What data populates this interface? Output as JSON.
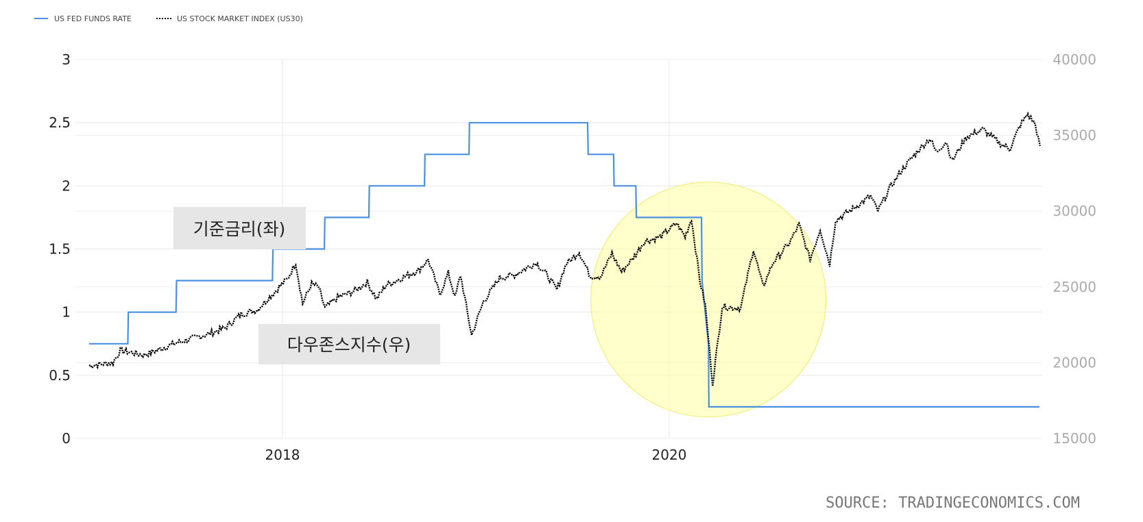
{
  "chart_data": {
    "type": "line",
    "legend": {
      "position": "top-left",
      "items": [
        {
          "label": "US FED FUNDS RATE",
          "style": "solid",
          "color": "#4a90e2"
        },
        {
          "label": "US STOCK MARKET INDEX (US30)",
          "style": "dotted",
          "color": "#000000"
        }
      ]
    },
    "x_axis": {
      "ticks": [
        "2018",
        "2020"
      ],
      "range": [
        "2017-01",
        "2021-12"
      ]
    },
    "y_left": {
      "min": 0,
      "max": 3,
      "ticks": [
        "0",
        "0.5",
        "1",
        "1.5",
        "2",
        "2.5",
        "3"
      ]
    },
    "y_right": {
      "min": 15000,
      "max": 40000,
      "ticks": [
        "15000",
        "20000",
        "25000",
        "30000",
        "35000",
        "40000"
      ]
    },
    "grid": true,
    "series": [
      {
        "name": "US FED FUNDS RATE",
        "axis": "left",
        "color": "#4a90e2",
        "points": [
          [
            "2017-01-01",
            0.75
          ],
          [
            "2017-03-15",
            0.75
          ],
          [
            "2017-03-16",
            1.0
          ],
          [
            "2017-06-14",
            1.0
          ],
          [
            "2017-06-15",
            1.25
          ],
          [
            "2017-12-13",
            1.25
          ],
          [
            "2017-12-14",
            1.5
          ],
          [
            "2018-03-21",
            1.5
          ],
          [
            "2018-03-22",
            1.75
          ],
          [
            "2018-06-13",
            1.75
          ],
          [
            "2018-06-14",
            2.0
          ],
          [
            "2018-09-26",
            2.0
          ],
          [
            "2018-09-27",
            2.25
          ],
          [
            "2018-12-19",
            2.25
          ],
          [
            "2018-12-20",
            2.5
          ],
          [
            "2019-07-31",
            2.5
          ],
          [
            "2019-08-01",
            2.25
          ],
          [
            "2019-09-18",
            2.25
          ],
          [
            "2019-09-19",
            2.0
          ],
          [
            "2019-10-30",
            2.0
          ],
          [
            "2019-10-31",
            1.75
          ],
          [
            "2020-03-02",
            1.75
          ],
          [
            "2020-03-03",
            1.25
          ],
          [
            "2020-03-15",
            0.75
          ],
          [
            "2020-03-16",
            0.25
          ],
          [
            "2021-11-30",
            0.25
          ]
        ]
      },
      {
        "name": "US STOCK MARKET INDEX (US30)",
        "axis": "right",
        "color": "#000000",
        "points": [
          [
            "2017-01-01",
            19800
          ],
          [
            "2017-02-15",
            20000
          ],
          [
            "2017-03-01",
            20800
          ],
          [
            "2017-04-15",
            20500
          ],
          [
            "2017-05-15",
            20900
          ],
          [
            "2017-06-15",
            21300
          ],
          [
            "2017-07-15",
            21600
          ],
          [
            "2017-08-15",
            21900
          ],
          [
            "2017-09-15",
            22300
          ],
          [
            "2017-10-15",
            23200
          ],
          [
            "2017-11-15",
            23500
          ],
          [
            "2017-12-15",
            24600
          ],
          [
            "2018-01-10",
            25500
          ],
          [
            "2018-01-26",
            26600
          ],
          [
            "2018-02-08",
            23900
          ],
          [
            "2018-02-25",
            25200
          ],
          [
            "2018-03-10",
            25000
          ],
          [
            "2018-03-22",
            23600
          ],
          [
            "2018-04-15",
            24300
          ],
          [
            "2018-05-15",
            24700
          ],
          [
            "2018-06-10",
            25300
          ],
          [
            "2018-06-28",
            24200
          ],
          [
            "2018-07-15",
            25100
          ],
          [
            "2018-08-15",
            25600
          ],
          [
            "2018-09-15",
            26100
          ],
          [
            "2018-10-03",
            26800
          ],
          [
            "2018-10-25",
            24500
          ],
          [
            "2018-11-10",
            25900
          ],
          [
            "2018-11-23",
            24300
          ],
          [
            "2018-12-03",
            25800
          ],
          [
            "2018-12-24",
            21800
          ],
          [
            "2019-01-15",
            24000
          ],
          [
            "2019-02-15",
            25600
          ],
          [
            "2019-03-15",
            25800
          ],
          [
            "2019-04-25",
            26600
          ],
          [
            "2019-05-15",
            25800
          ],
          [
            "2019-06-03",
            24800
          ],
          [
            "2019-06-20",
            26500
          ],
          [
            "2019-07-15",
            27300
          ],
          [
            "2019-08-05",
            25700
          ],
          [
            "2019-08-25",
            25700
          ],
          [
            "2019-09-15",
            27200
          ],
          [
            "2019-10-03",
            26000
          ],
          [
            "2019-10-25",
            26900
          ],
          [
            "2019-11-15",
            28000
          ],
          [
            "2019-12-15",
            28300
          ],
          [
            "2020-01-15",
            29200
          ],
          [
            "2020-01-31",
            28300
          ],
          [
            "2020-02-12",
            29500
          ],
          [
            "2020-02-28",
            25400
          ],
          [
            "2020-03-09",
            23800
          ],
          [
            "2020-03-23",
            18600
          ],
          [
            "2020-04-10",
            23700
          ],
          [
            "2020-05-15",
            23600
          ],
          [
            "2020-06-08",
            27500
          ],
          [
            "2020-06-26",
            25000
          ],
          [
            "2020-07-15",
            26600
          ],
          [
            "2020-08-15",
            27900
          ],
          [
            "2020-09-02",
            29100
          ],
          [
            "2020-09-23",
            26800
          ],
          [
            "2020-10-12",
            28800
          ],
          [
            "2020-10-30",
            26500
          ],
          [
            "2020-11-10",
            29400
          ],
          [
            "2020-12-15",
            30200
          ],
          [
            "2021-01-15",
            31000
          ],
          [
            "2021-01-29",
            30000
          ],
          [
            "2021-02-20",
            31500
          ],
          [
            "2021-03-15",
            32700
          ],
          [
            "2021-04-15",
            34000
          ],
          [
            "2021-05-07",
            34800
          ],
          [
            "2021-05-19",
            33900
          ],
          [
            "2021-06-07",
            34600
          ],
          [
            "2021-06-18",
            33300
          ],
          [
            "2021-07-15",
            34900
          ],
          [
            "2021-08-15",
            35400
          ],
          [
            "2021-09-15",
            34500
          ],
          [
            "2021-10-05",
            34100
          ],
          [
            "2021-10-25",
            35700
          ],
          [
            "2021-11-08",
            36400
          ],
          [
            "2021-11-22",
            35700
          ],
          [
            "2021-12-01",
            34300
          ]
        ]
      }
    ],
    "annotations": [
      {
        "text": "기준금리(좌)",
        "points_to": "US FED FUNDS RATE"
      },
      {
        "text": "다우존스지수(우)",
        "points_to": "US STOCK MARKET INDEX (US30)"
      }
    ],
    "highlight": {
      "shape": "circle",
      "color": "#ffff99",
      "center": [
        "2020-03-15",
        1.1
      ]
    }
  },
  "source": "SOURCE: TRADINGECONOMICS.COM"
}
